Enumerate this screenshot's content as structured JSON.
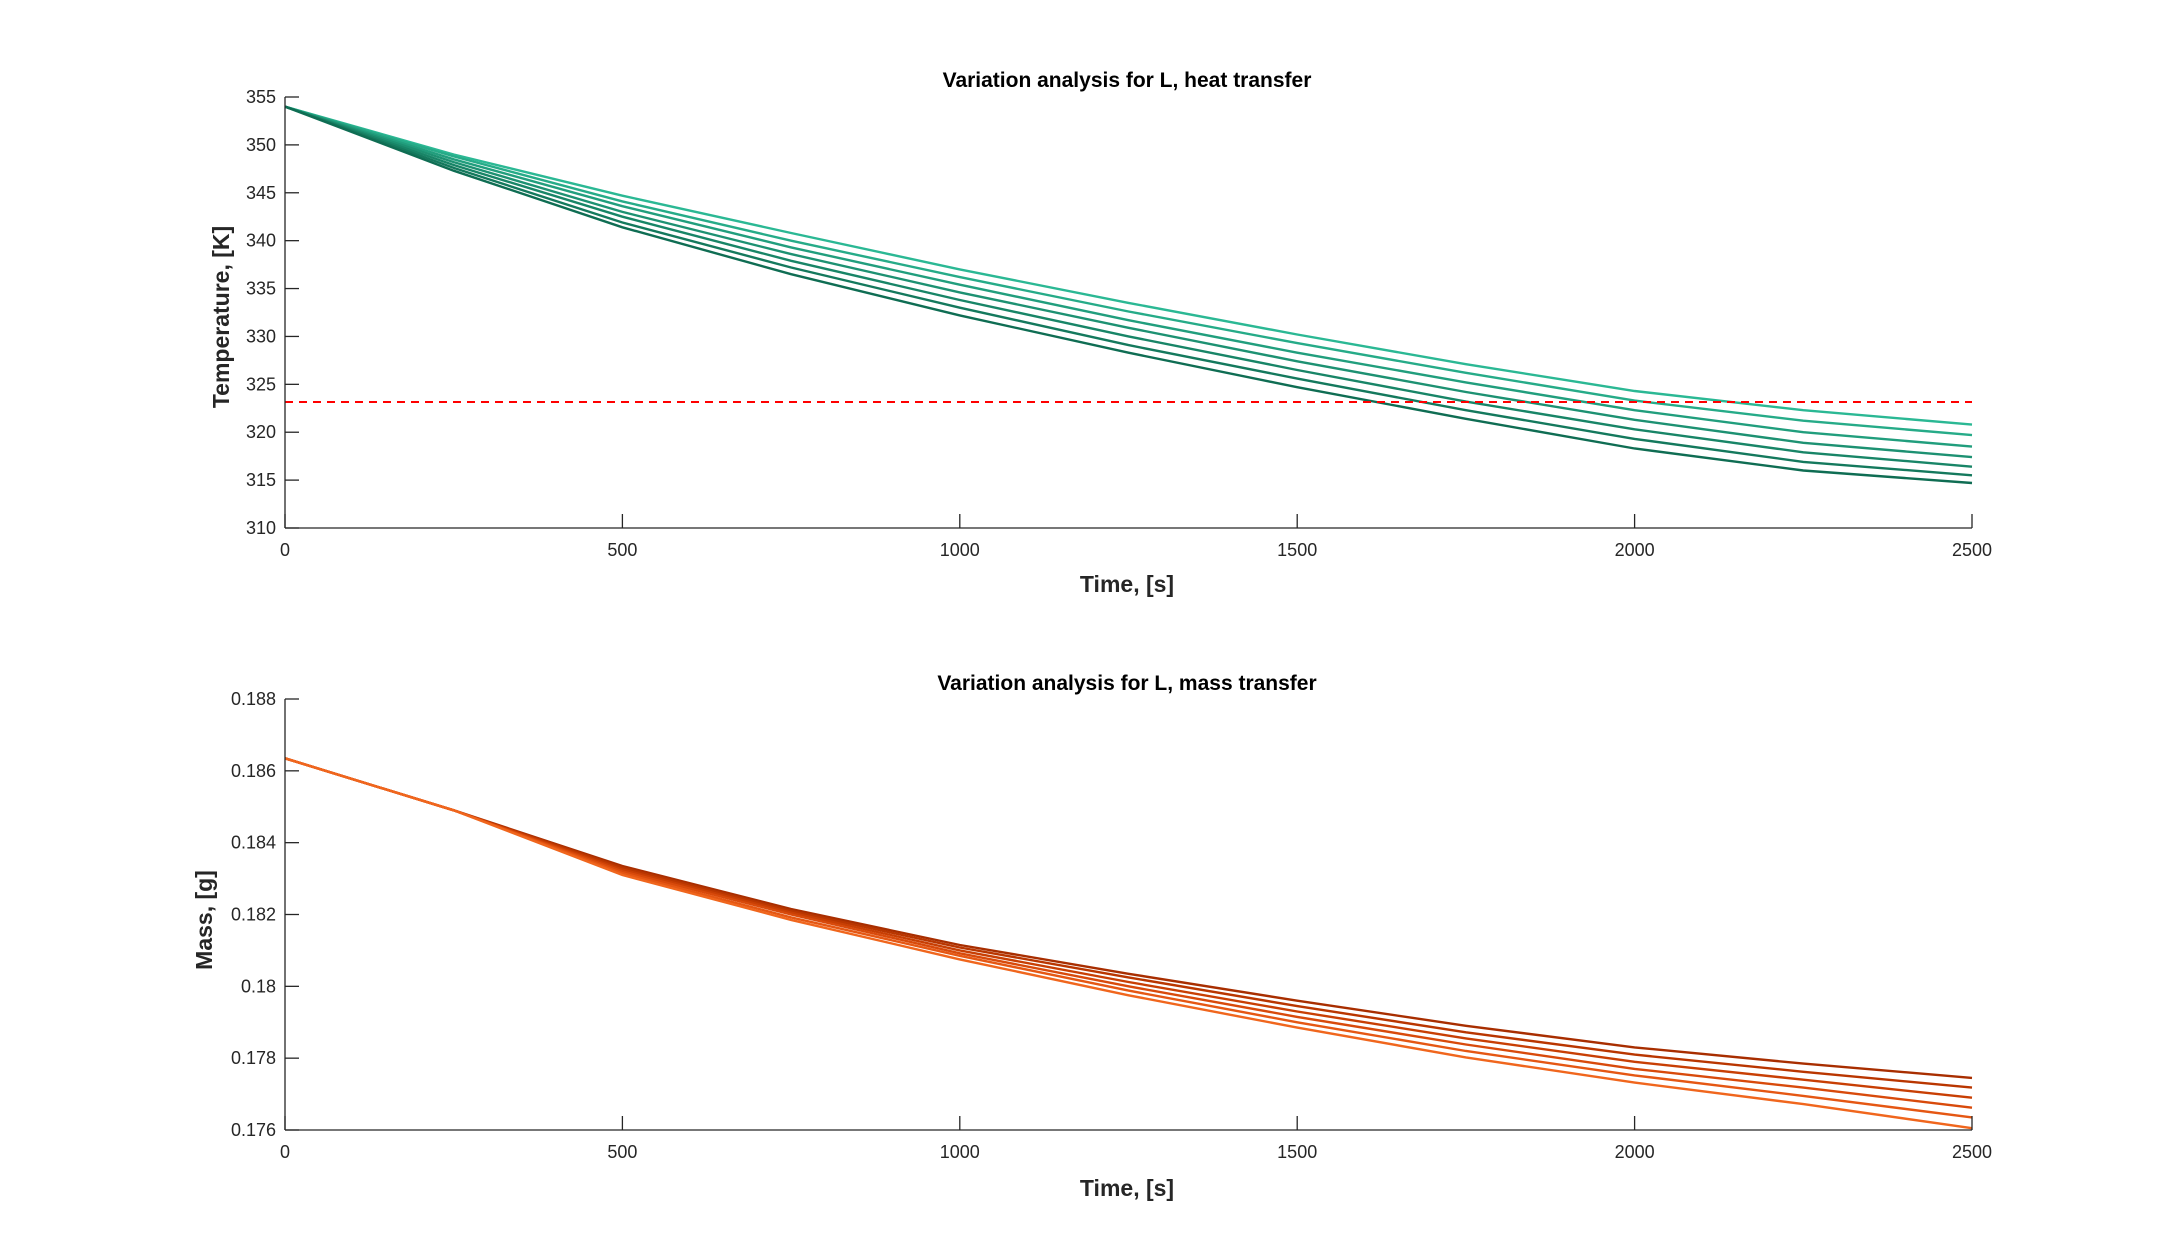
{
  "figure": {
    "background": "#ffffff"
  },
  "chart_data": [
    {
      "type": "line",
      "title": "Variation analysis for L, heat transfer",
      "xlabel": "Time, [s]",
      "ylabel": "Temperature, [K]",
      "xlim": [
        0,
        2500
      ],
      "ylim": [
        310,
        355
      ],
      "xticks": [
        0,
        500,
        1000,
        1500,
        2000,
        2500
      ],
      "yticks": [
        310,
        315,
        320,
        325,
        330,
        335,
        340,
        345,
        350,
        355
      ],
      "grid": false,
      "x": [
        0,
        250,
        500,
        750,
        1000,
        1250,
        1500,
        1750,
        2000,
        2250,
        2500
      ],
      "series": [
        {
          "color": "#2bb894",
          "values": [
            354.0,
            349.0,
            344.7,
            340.8,
            337.0,
            333.5,
            330.2,
            327.1,
            324.3,
            322.3,
            320.8
          ]
        },
        {
          "color": "#26ab88",
          "values": [
            354.0,
            348.8,
            344.1,
            340.0,
            336.2,
            332.6,
            329.3,
            326.2,
            323.3,
            321.2,
            319.7
          ]
        },
        {
          "color": "#219e7d",
          "values": [
            354.0,
            348.5,
            343.6,
            339.3,
            335.4,
            331.7,
            328.3,
            325.2,
            322.3,
            320.0,
            318.5
          ]
        },
        {
          "color": "#1d9172",
          "values": [
            354.0,
            348.2,
            343.0,
            338.6,
            334.6,
            330.9,
            327.4,
            324.2,
            321.3,
            318.9,
            317.4
          ]
        },
        {
          "color": "#188567",
          "values": [
            354.0,
            347.9,
            342.5,
            337.9,
            333.8,
            330.0,
            326.5,
            323.2,
            320.3,
            317.9,
            316.4
          ]
        },
        {
          "color": "#14795d",
          "values": [
            354.0,
            347.6,
            341.9,
            337.2,
            333.0,
            329.1,
            325.6,
            322.3,
            319.3,
            316.9,
            315.5
          ]
        },
        {
          "color": "#0f6d53",
          "values": [
            354.0,
            347.3,
            341.4,
            336.5,
            332.2,
            328.3,
            324.7,
            321.4,
            318.3,
            316.0,
            314.7
          ]
        }
      ],
      "reference_line": {
        "y": 323.15,
        "color": "#ff0000",
        "style": "dashed"
      }
    },
    {
      "type": "line",
      "title": "Variation analysis for L, mass transfer",
      "xlabel": "Time, [s]",
      "ylabel": "Mass, [g]",
      "xlim": [
        0,
        2500
      ],
      "ylim": [
        0.176,
        0.188
      ],
      "xticks": [
        0,
        500,
        1000,
        1500,
        2000,
        2500
      ],
      "yticks": [
        0.176,
        0.178,
        0.18,
        0.182,
        0.184,
        0.186,
        0.188
      ],
      "ytick_labels": [
        "0.176",
        "0.178",
        "0.18",
        "0.182",
        "0.184",
        "0.186",
        "0.188"
      ],
      "grid": false,
      "x": [
        0,
        250,
        500,
        750,
        1000,
        1250,
        1500,
        1750,
        2000,
        2250,
        2500
      ],
      "series": [
        {
          "color": "#a82e00",
          "values": [
            0.18635,
            0.1849,
            0.18335,
            0.18215,
            0.18115,
            0.18035,
            0.1796,
            0.1789,
            0.1783,
            0.17785,
            0.17745
          ]
        },
        {
          "color": "#b93600",
          "values": [
            0.18635,
            0.1849,
            0.1833,
            0.1821,
            0.18108,
            0.18025,
            0.17945,
            0.17872,
            0.1781,
            0.17762,
            0.17718
          ]
        },
        {
          "color": "#c83f04",
          "values": [
            0.18635,
            0.1849,
            0.18325,
            0.18205,
            0.181,
            0.18012,
            0.1793,
            0.17855,
            0.1779,
            0.1774,
            0.1769
          ]
        },
        {
          "color": "#d84a0b",
          "values": [
            0.18635,
            0.1849,
            0.1832,
            0.182,
            0.18092,
            0.18,
            0.17915,
            0.17838,
            0.1777,
            0.17718,
            0.17662
          ]
        },
        {
          "color": "#e55713",
          "values": [
            0.18635,
            0.1849,
            0.18315,
            0.18192,
            0.18085,
            0.17988,
            0.179,
            0.1782,
            0.17752,
            0.17695,
            0.17635
          ]
        },
        {
          "color": "#f0661d",
          "values": [
            0.18635,
            0.1849,
            0.1831,
            0.18185,
            0.18075,
            0.17975,
            0.17885,
            0.17802,
            0.17732,
            0.17672,
            0.17605
          ]
        }
      ]
    }
  ]
}
